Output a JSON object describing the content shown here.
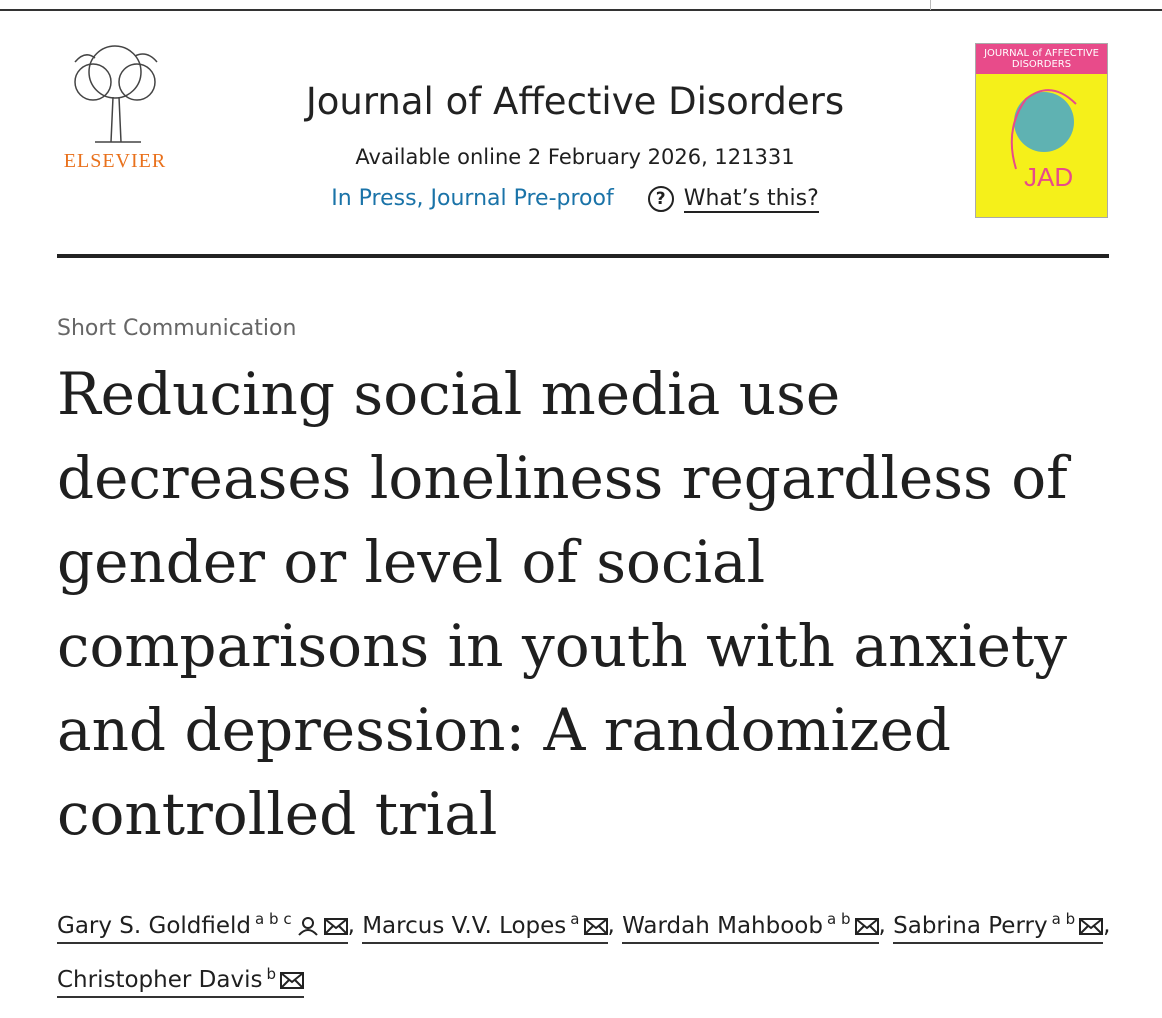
{
  "header": {
    "publisher": "ELSEVIER",
    "journal": "Journal of Affective Disorders",
    "available": "Available online 2 February 2026, 121331",
    "status": "In Press, Journal Pre-proof",
    "help_icon": "?",
    "whats_this": "What’s this?",
    "cover": {
      "title": "JOURNAL of AFFECTIVE DISORDERS",
      "logo": "JAD"
    }
  },
  "article": {
    "type": "Short Communication",
    "title": [
      "Reducing social media use",
      "decreases loneliness regardless of",
      "gender or level of social",
      "comparisons in youth with anxiety",
      "and depression: A randomized",
      "controlled trial"
    ],
    "author_separator": ",",
    "authors": [
      {
        "name": "Gary S. Goldfield",
        "affiliations": [
          "a",
          "b",
          "c"
        ],
        "corresponding": true
      },
      {
        "name": "Marcus V.V. Lopes",
        "affiliations": [
          "a"
        ],
        "corresponding": false
      },
      {
        "name": "Wardah Mahboob",
        "affiliations": [
          "a",
          "b"
        ],
        "corresponding": false
      },
      {
        "name": "Sabrina Perry",
        "affiliations": [
          "a",
          "b"
        ],
        "corresponding": false
      },
      {
        "name": "Christopher Davis",
        "affiliations": [
          "b"
        ],
        "corresponding": false
      }
    ]
  }
}
